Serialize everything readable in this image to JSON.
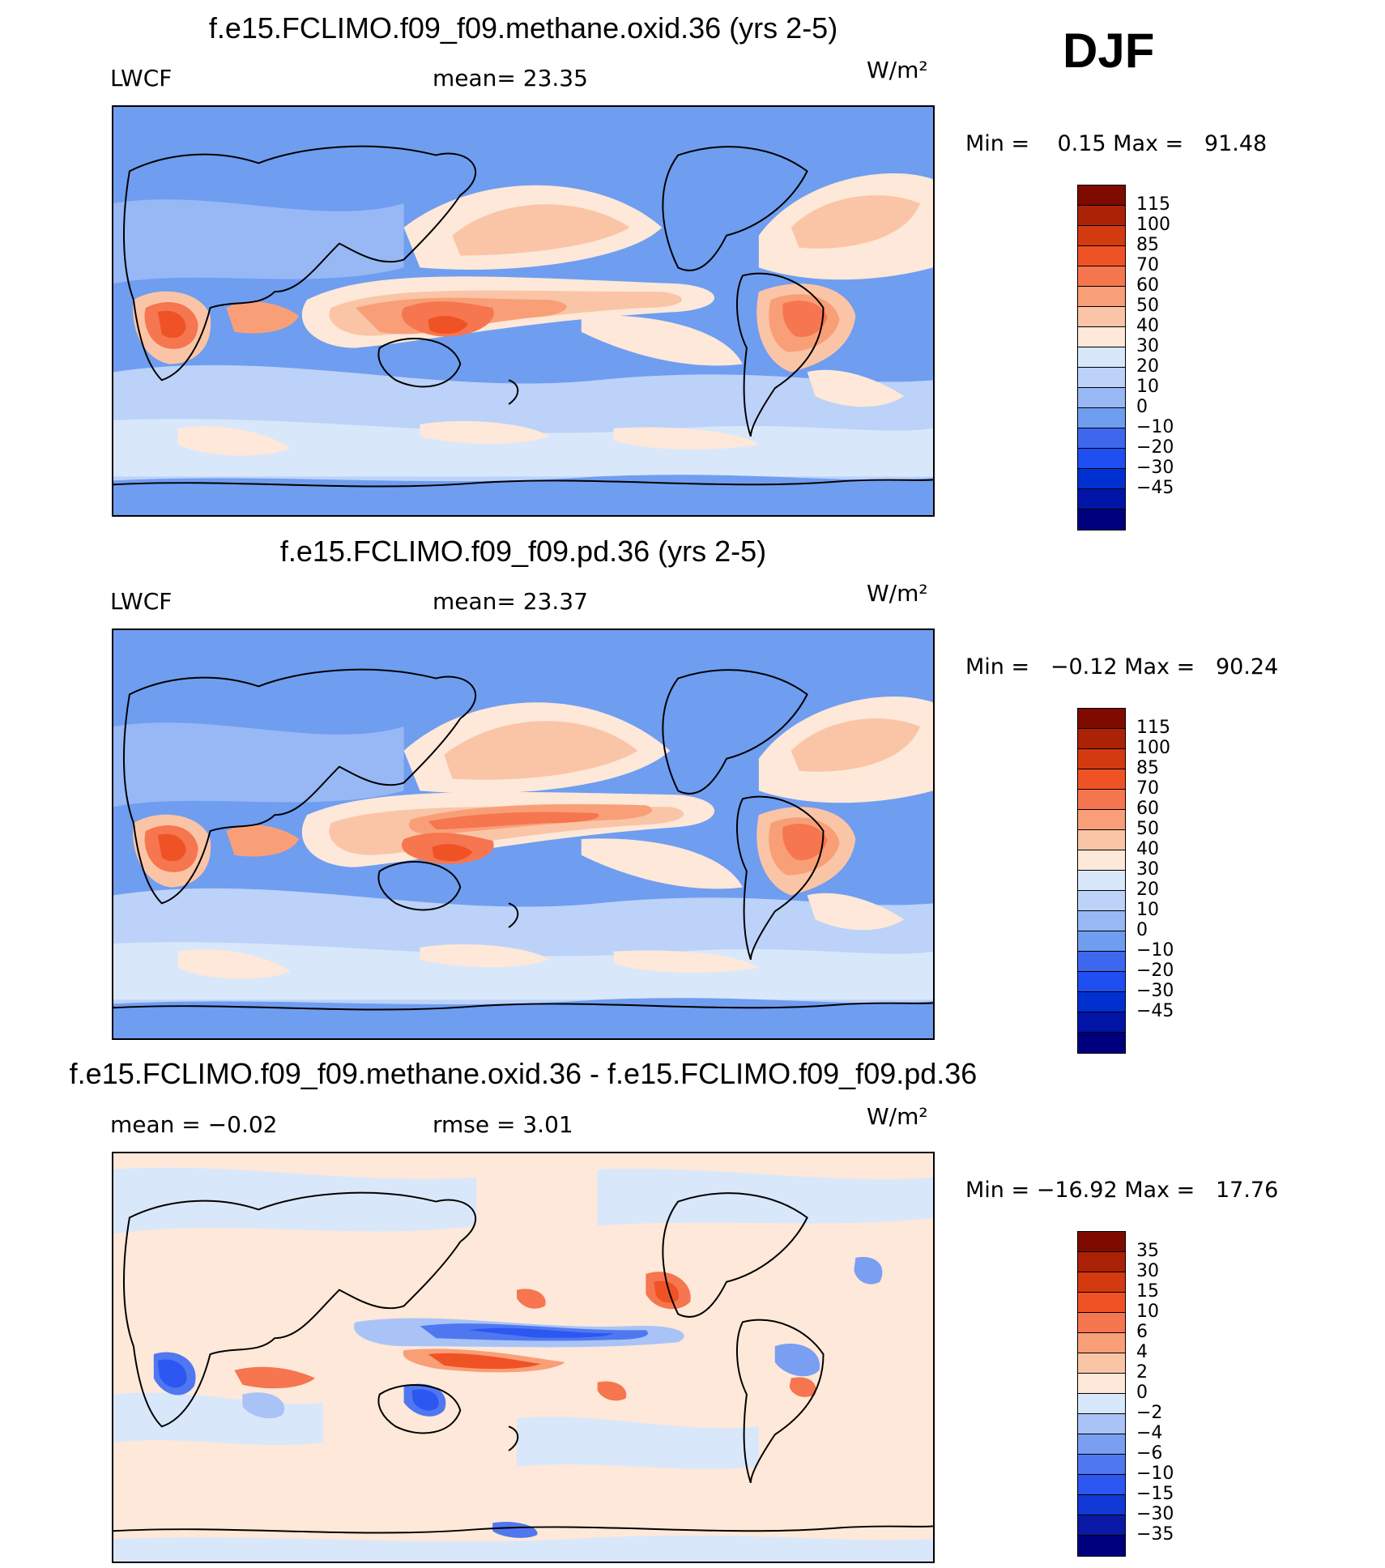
{
  "season": "DJF",
  "colors": {
    "panel": [
      "#00007f",
      "#0015a8",
      "#0030d0",
      "#1e4ff2",
      "#3d68ee",
      "#6f9df0",
      "#97b8f5",
      "#bcd2f8",
      "#d9e7fb",
      "#fde8d9",
      "#fac5a6",
      "#f99f78",
      "#f6764f",
      "#ef5325",
      "#d33a10",
      "#ab2206",
      "#7e0a00"
    ],
    "diff": [
      "#00007f",
      "#0a1aa6",
      "#1238d6",
      "#2c57f0",
      "#4f78f0",
      "#7a9ef2",
      "#a9c3f7",
      "#d9e7fb",
      "#fde8d9",
      "#fac5a6",
      "#f99f78",
      "#f6764f",
      "#ef5325",
      "#d33a10",
      "#ab2206",
      "#7e0a00"
    ]
  },
  "panels": [
    {
      "id": "p1",
      "title": "f.e15.FCLIMO.f09_f09.methane.oxid.36 (yrs 2-5)",
      "left_label": "LWCF",
      "center_label": "mean=   23.35",
      "units": "W/m²",
      "minmax": "Min =    0.15 Max =   91.48",
      "levels": [
        "115",
        "100",
        "85",
        "70",
        "60",
        "50",
        "40",
        "30",
        "20",
        "10",
        "0",
        "−10",
        "−20",
        "−30",
        "−45"
      ]
    },
    {
      "id": "p2",
      "title": "f.e15.FCLIMO.f09_f09.pd.36 (yrs 2-5)",
      "left_label": "LWCF",
      "center_label": "mean=   23.37",
      "units": "W/m²",
      "minmax": "Min =   −0.12 Max =   90.24",
      "levels": [
        "115",
        "100",
        "85",
        "70",
        "60",
        "50",
        "40",
        "30",
        "20",
        "10",
        "0",
        "−10",
        "−20",
        "−30",
        "−45"
      ]
    },
    {
      "id": "p3",
      "title": "f.e15.FCLIMO.f09_f09.methane.oxid.36 - f.e15.FCLIMO.f09_f09.pd.36",
      "left_label": "mean =   −0.02",
      "center_label": "rmse =    3.01",
      "units": "W/m²",
      "minmax": "Min = −16.92 Max =   17.76",
      "levels": [
        "35",
        "30",
        "15",
        "10",
        "6",
        "4",
        "2",
        "0",
        "−2",
        "−4",
        "−6",
        "−10",
        "−15",
        "−30",
        "−35"
      ]
    }
  ]
}
